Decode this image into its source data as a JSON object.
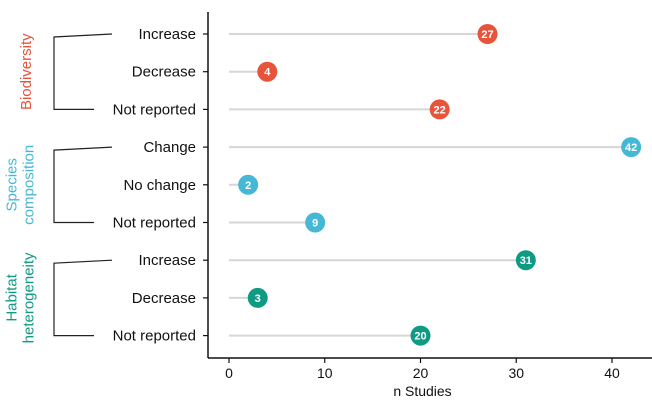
{
  "chart_data": {
    "type": "lollipop",
    "xlabel": "n Studies",
    "xlim": [
      0,
      43
    ],
    "xticks": [
      0,
      10,
      20,
      30,
      40
    ],
    "grid": false,
    "groups": [
      {
        "name": "Biodiversity",
        "color": "#e8533b",
        "items": [
          {
            "label": "Increase",
            "value": 27
          },
          {
            "label": "Decrease",
            "value": 4
          },
          {
            "label": "Not reported",
            "value": 22
          }
        ]
      },
      {
        "name_lines": [
          "Species",
          "composition"
        ],
        "color": "#45b8d6",
        "items": [
          {
            "label": "Change",
            "value": 42
          },
          {
            "label": "No change",
            "value": 2
          },
          {
            "label": "Not reported",
            "value": 9
          }
        ]
      },
      {
        "name_lines": [
          "Habitat",
          "heterogeneity"
        ],
        "color": "#0f9a83",
        "items": [
          {
            "label": "Increase",
            "value": 31
          },
          {
            "label": "Decrease",
            "value": 3
          },
          {
            "label": "Not reported",
            "value": 20
          }
        ]
      }
    ],
    "stem_color": "#d6d6d6"
  }
}
